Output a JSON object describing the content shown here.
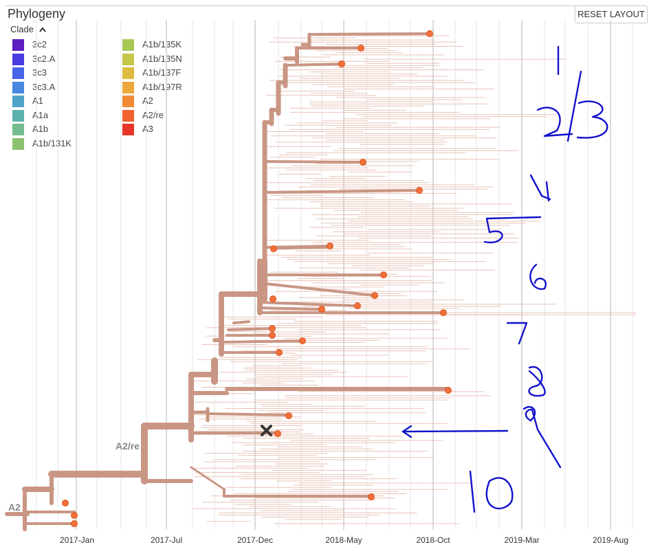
{
  "panel": {
    "title": "Phylogeny",
    "reset_label": "RESET LAYOUT",
    "legend_toggle": "Clade",
    "legend_toggle_icon": "chevron-up-icon"
  },
  "legend": [
    {
      "label": "3c2",
      "color": "#5E1DBE"
    },
    {
      "label": "3c2.A",
      "color": "#4A3CE0"
    },
    {
      "label": "3c3",
      "color": "#4864E9"
    },
    {
      "label": "3c3.A",
      "color": "#4787E0"
    },
    {
      "label": "A1",
      "color": "#4FA5C9"
    },
    {
      "label": "A1a",
      "color": "#5CB1AF"
    },
    {
      "label": "A1b",
      "color": "#74BD8F"
    },
    {
      "label": "A1b/131K",
      "color": "#8CC26F"
    },
    {
      "label": "A1b/135K",
      "color": "#A8C856"
    },
    {
      "label": "A1b/135N",
      "color": "#C5C64A"
    },
    {
      "label": "A1b/137F",
      "color": "#DDBC41"
    },
    {
      "label": "A1b/197R",
      "color": "#ECA83A"
    },
    {
      "label": "A2",
      "color": "#F08A34"
    },
    {
      "label": "A2/re",
      "color": "#F1622E"
    },
    {
      "label": "A3",
      "color": "#E93528"
    }
  ],
  "chart_data": {
    "type": "tree",
    "x_ticks": [
      "2017-Jan",
      "2017-Jul",
      "2017-Dec",
      "2018-May",
      "2018-Oct",
      "2019-Mar",
      "2019-Aug"
    ],
    "clade_labels": [
      "A2/re",
      "A2"
    ],
    "branch_color": "#C99684",
    "tip_color": "#F2703A",
    "grid": true,
    "annotations": {
      "handwritten_numbers": [
        "1",
        "2",
        "3",
        "4",
        "5",
        "6",
        "7",
        "8",
        "9",
        "10"
      ],
      "handwritten_color": "#1111CC"
    }
  }
}
